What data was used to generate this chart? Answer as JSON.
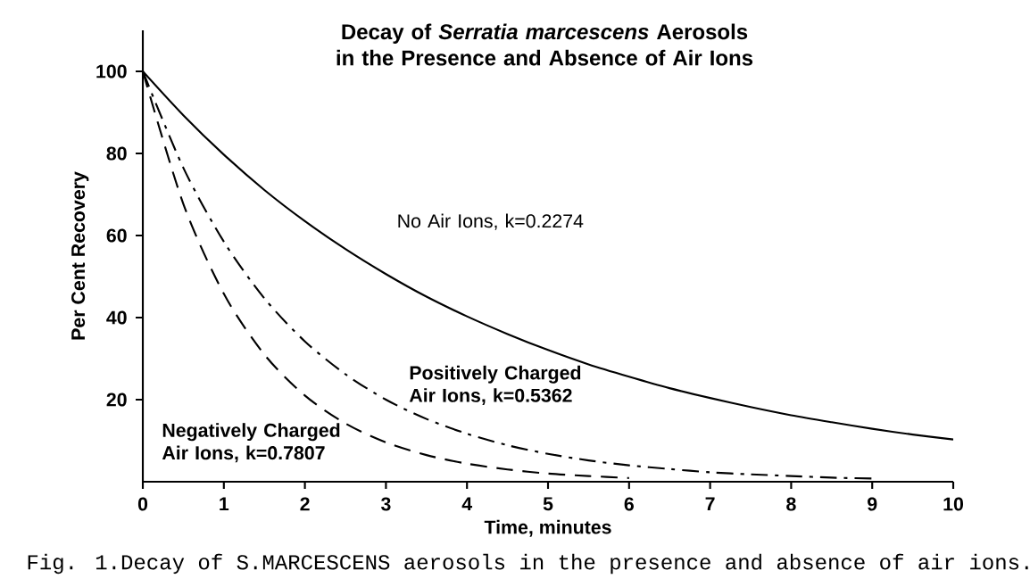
{
  "chart_data": {
    "type": "line",
    "title": "Decay of *Serratia marcescens* Aerosols in the Presence and Absence of Air Ions",
    "xlabel": "Time, minutes",
    "ylabel": "Per Cent Recovery",
    "x": [
      0,
      0.5,
      1,
      1.5,
      2,
      2.5,
      3,
      3.5,
      4,
      4.5,
      5,
      5.5,
      6,
      6.5,
      7,
      7.5,
      8,
      8.5,
      9,
      9.5,
      10
    ],
    "series": [
      {
        "name": "No Air Ions, k=0.2274",
        "color": "#000000",
        "line_style": "solid",
        "values": [
          100,
          89.3,
          79.7,
          71.1,
          63.5,
          56.7,
          50.6,
          45.1,
          40.3,
          36.0,
          32.1,
          28.6,
          25.6,
          22.8,
          20.4,
          18.2,
          16.2,
          14.5,
          12.9,
          11.5,
          10.3
        ]
      },
      {
        "name": "Positively Charged Air Ions, k=0.5362",
        "color": "#000000",
        "line_style": "dashdot",
        "values": [
          100,
          76.5,
          58.5,
          44.7,
          34.2,
          26.2,
          20.0,
          15.3,
          11.7,
          8.9,
          6.8,
          5.2,
          4.0,
          3.1,
          2.3,
          1.8,
          1.4,
          1.0,
          0.8,
          null,
          null
        ]
      },
      {
        "name": "Negatively Charged Air Ions, k=0.7807",
        "color": "#000000",
        "line_style": "dashed",
        "values": [
          100,
          67.7,
          45.8,
          31.0,
          21.0,
          14.2,
          9.6,
          6.5,
          4.4,
          3.0,
          2.0,
          1.4,
          0.9,
          null,
          null,
          null,
          null,
          null,
          null,
          null,
          null
        ]
      }
    ],
    "xlim": [
      0,
      10
    ],
    "ylim": [
      0,
      110
    ],
    "xticks": [
      0,
      1,
      2,
      3,
      4,
      5,
      6,
      7,
      8,
      9,
      10
    ],
    "yticks": [
      20,
      40,
      60,
      80,
      100
    ],
    "grid": false,
    "legend": false,
    "marker": "none",
    "annotations": [
      "Fig. 1.Decay of S.MARCESCENS aerosols in the presence and absence of air ions."
    ]
  }
}
